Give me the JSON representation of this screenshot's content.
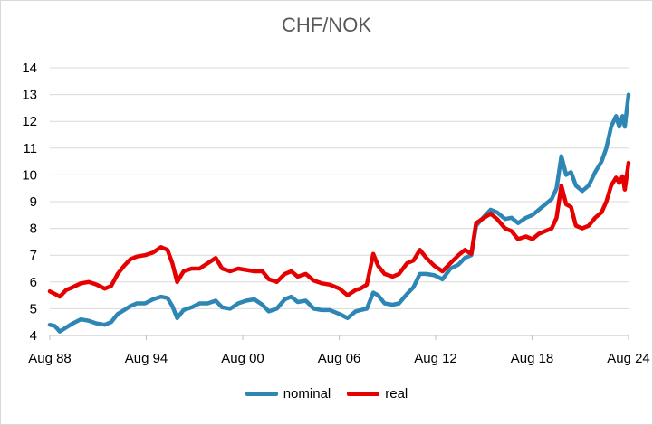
{
  "chart_data": {
    "type": "line",
    "title": "CHF/NOK",
    "xlabel": "",
    "ylabel": "",
    "ylim": [
      4,
      14
    ],
    "y_ticks": [
      4,
      5,
      6,
      7,
      8,
      9,
      10,
      11,
      12,
      13,
      14
    ],
    "xlim": [
      1988.58,
      2024.58
    ],
    "x_ticks": [
      {
        "label": "Aug 88",
        "year": 1988.58
      },
      {
        "label": "Aug 94",
        "year": 1994.58
      },
      {
        "label": "Aug 00",
        "year": 2000.58
      },
      {
        "label": "Aug 06",
        "year": 2006.58
      },
      {
        "label": "Aug 12",
        "year": 2012.58
      },
      {
        "label": "Aug 18",
        "year": 2018.58
      },
      {
        "label": "Aug 24",
        "year": 2024.58
      }
    ],
    "grid": "horizontal",
    "legend_position": "bottom",
    "series": [
      {
        "name": "nominal",
        "color": "#2E86B5",
        "points": [
          [
            1988.58,
            4.4
          ],
          [
            1988.9,
            4.35
          ],
          [
            1989.2,
            4.15
          ],
          [
            1989.6,
            4.3
          ],
          [
            1990.0,
            4.45
          ],
          [
            1990.5,
            4.6
          ],
          [
            1991.0,
            4.55
          ],
          [
            1991.5,
            4.45
          ],
          [
            1992.0,
            4.4
          ],
          [
            1992.4,
            4.5
          ],
          [
            1992.8,
            4.8
          ],
          [
            1993.2,
            4.95
          ],
          [
            1993.6,
            5.1
          ],
          [
            1994.0,
            5.2
          ],
          [
            1994.5,
            5.2
          ],
          [
            1995.0,
            5.35
          ],
          [
            1995.5,
            5.45
          ],
          [
            1995.9,
            5.4
          ],
          [
            1996.2,
            5.1
          ],
          [
            1996.5,
            4.65
          ],
          [
            1996.9,
            4.95
          ],
          [
            1997.4,
            5.05
          ],
          [
            1997.9,
            5.2
          ],
          [
            1998.4,
            5.2
          ],
          [
            1998.9,
            5.3
          ],
          [
            1999.3,
            5.05
          ],
          [
            1999.8,
            5.0
          ],
          [
            2000.3,
            5.2
          ],
          [
            2000.8,
            5.3
          ],
          [
            2001.3,
            5.35
          ],
          [
            2001.8,
            5.15
          ],
          [
            2002.2,
            4.9
          ],
          [
            2002.7,
            5.0
          ],
          [
            2003.2,
            5.35
          ],
          [
            2003.6,
            5.45
          ],
          [
            2004.0,
            5.25
          ],
          [
            2004.5,
            5.3
          ],
          [
            2005.0,
            5.0
          ],
          [
            2005.5,
            4.95
          ],
          [
            2006.0,
            4.95
          ],
          [
            2006.6,
            4.8
          ],
          [
            2007.1,
            4.65
          ],
          [
            2007.6,
            4.9
          ],
          [
            2007.9,
            4.95
          ],
          [
            2008.3,
            5.0
          ],
          [
            2008.7,
            5.6
          ],
          [
            2009.0,
            5.5
          ],
          [
            2009.4,
            5.2
          ],
          [
            2009.9,
            5.15
          ],
          [
            2010.3,
            5.2
          ],
          [
            2010.8,
            5.55
          ],
          [
            2011.2,
            5.8
          ],
          [
            2011.6,
            6.3
          ],
          [
            2012.0,
            6.3
          ],
          [
            2012.5,
            6.25
          ],
          [
            2013.0,
            6.1
          ],
          [
            2013.5,
            6.5
          ],
          [
            2014.0,
            6.65
          ],
          [
            2014.4,
            6.9
          ],
          [
            2014.8,
            7.0
          ],
          [
            2015.1,
            8.1
          ],
          [
            2015.6,
            8.45
          ],
          [
            2016.0,
            8.7
          ],
          [
            2016.4,
            8.6
          ],
          [
            2016.9,
            8.35
          ],
          [
            2017.3,
            8.4
          ],
          [
            2017.7,
            8.2
          ],
          [
            2018.2,
            8.4
          ],
          [
            2018.6,
            8.5
          ],
          [
            2019.0,
            8.7
          ],
          [
            2019.4,
            8.9
          ],
          [
            2019.8,
            9.1
          ],
          [
            2020.1,
            9.5
          ],
          [
            2020.4,
            10.7
          ],
          [
            2020.7,
            10.0
          ],
          [
            2021.0,
            10.1
          ],
          [
            2021.3,
            9.6
          ],
          [
            2021.7,
            9.4
          ],
          [
            2022.1,
            9.6
          ],
          [
            2022.5,
            10.1
          ],
          [
            2022.9,
            10.5
          ],
          [
            2023.2,
            11.0
          ],
          [
            2023.5,
            11.8
          ],
          [
            2023.8,
            12.2
          ],
          [
            2024.0,
            11.8
          ],
          [
            2024.2,
            12.2
          ],
          [
            2024.35,
            11.8
          ],
          [
            2024.58,
            13.0
          ]
        ]
      },
      {
        "name": "real",
        "color": "#E60000",
        "points": [
          [
            1988.58,
            5.65
          ],
          [
            1988.9,
            5.55
          ],
          [
            1989.2,
            5.45
          ],
          [
            1989.6,
            5.7
          ],
          [
            1990.0,
            5.8
          ],
          [
            1990.5,
            5.95
          ],
          [
            1991.0,
            6.0
          ],
          [
            1991.5,
            5.9
          ],
          [
            1992.0,
            5.75
          ],
          [
            1992.4,
            5.85
          ],
          [
            1992.8,
            6.3
          ],
          [
            1993.2,
            6.6
          ],
          [
            1993.6,
            6.85
          ],
          [
            1994.0,
            6.95
          ],
          [
            1994.5,
            7.0
          ],
          [
            1995.0,
            7.1
          ],
          [
            1995.5,
            7.3
          ],
          [
            1995.9,
            7.2
          ],
          [
            1996.2,
            6.7
          ],
          [
            1996.5,
            6.0
          ],
          [
            1996.9,
            6.4
          ],
          [
            1997.4,
            6.5
          ],
          [
            1997.9,
            6.5
          ],
          [
            1998.4,
            6.7
          ],
          [
            1998.9,
            6.9
          ],
          [
            1999.3,
            6.5
          ],
          [
            1999.8,
            6.4
          ],
          [
            2000.3,
            6.5
          ],
          [
            2000.8,
            6.45
          ],
          [
            2001.3,
            6.4
          ],
          [
            2001.8,
            6.4
          ],
          [
            2002.2,
            6.1
          ],
          [
            2002.7,
            6.0
          ],
          [
            2003.2,
            6.3
          ],
          [
            2003.6,
            6.4
          ],
          [
            2004.0,
            6.2
          ],
          [
            2004.5,
            6.3
          ],
          [
            2005.0,
            6.05
          ],
          [
            2005.5,
            5.95
          ],
          [
            2006.0,
            5.9
          ],
          [
            2006.6,
            5.75
          ],
          [
            2007.1,
            5.5
          ],
          [
            2007.6,
            5.7
          ],
          [
            2007.9,
            5.75
          ],
          [
            2008.3,
            5.9
          ],
          [
            2008.7,
            7.05
          ],
          [
            2009.0,
            6.6
          ],
          [
            2009.4,
            6.3
          ],
          [
            2009.9,
            6.2
          ],
          [
            2010.3,
            6.3
          ],
          [
            2010.8,
            6.7
          ],
          [
            2011.2,
            6.8
          ],
          [
            2011.6,
            7.2
          ],
          [
            2012.0,
            6.9
          ],
          [
            2012.5,
            6.6
          ],
          [
            2013.0,
            6.4
          ],
          [
            2013.5,
            6.7
          ],
          [
            2014.0,
            7.0
          ],
          [
            2014.4,
            7.2
          ],
          [
            2014.8,
            7.05
          ],
          [
            2015.1,
            8.2
          ],
          [
            2015.6,
            8.4
          ],
          [
            2016.0,
            8.55
          ],
          [
            2016.4,
            8.35
          ],
          [
            2016.9,
            8.0
          ],
          [
            2017.3,
            7.9
          ],
          [
            2017.7,
            7.6
          ],
          [
            2018.2,
            7.7
          ],
          [
            2018.6,
            7.6
          ],
          [
            2019.0,
            7.8
          ],
          [
            2019.4,
            7.9
          ],
          [
            2019.8,
            8.0
          ],
          [
            2020.1,
            8.4
          ],
          [
            2020.4,
            9.6
          ],
          [
            2020.7,
            8.9
          ],
          [
            2021.0,
            8.8
          ],
          [
            2021.3,
            8.1
          ],
          [
            2021.7,
            8.0
          ],
          [
            2022.1,
            8.1
          ],
          [
            2022.5,
            8.4
          ],
          [
            2022.9,
            8.6
          ],
          [
            2023.2,
            9.0
          ],
          [
            2023.5,
            9.6
          ],
          [
            2023.8,
            9.9
          ],
          [
            2024.0,
            9.7
          ],
          [
            2024.2,
            9.95
          ],
          [
            2024.35,
            9.45
          ],
          [
            2024.58,
            10.45
          ]
        ]
      }
    ]
  }
}
